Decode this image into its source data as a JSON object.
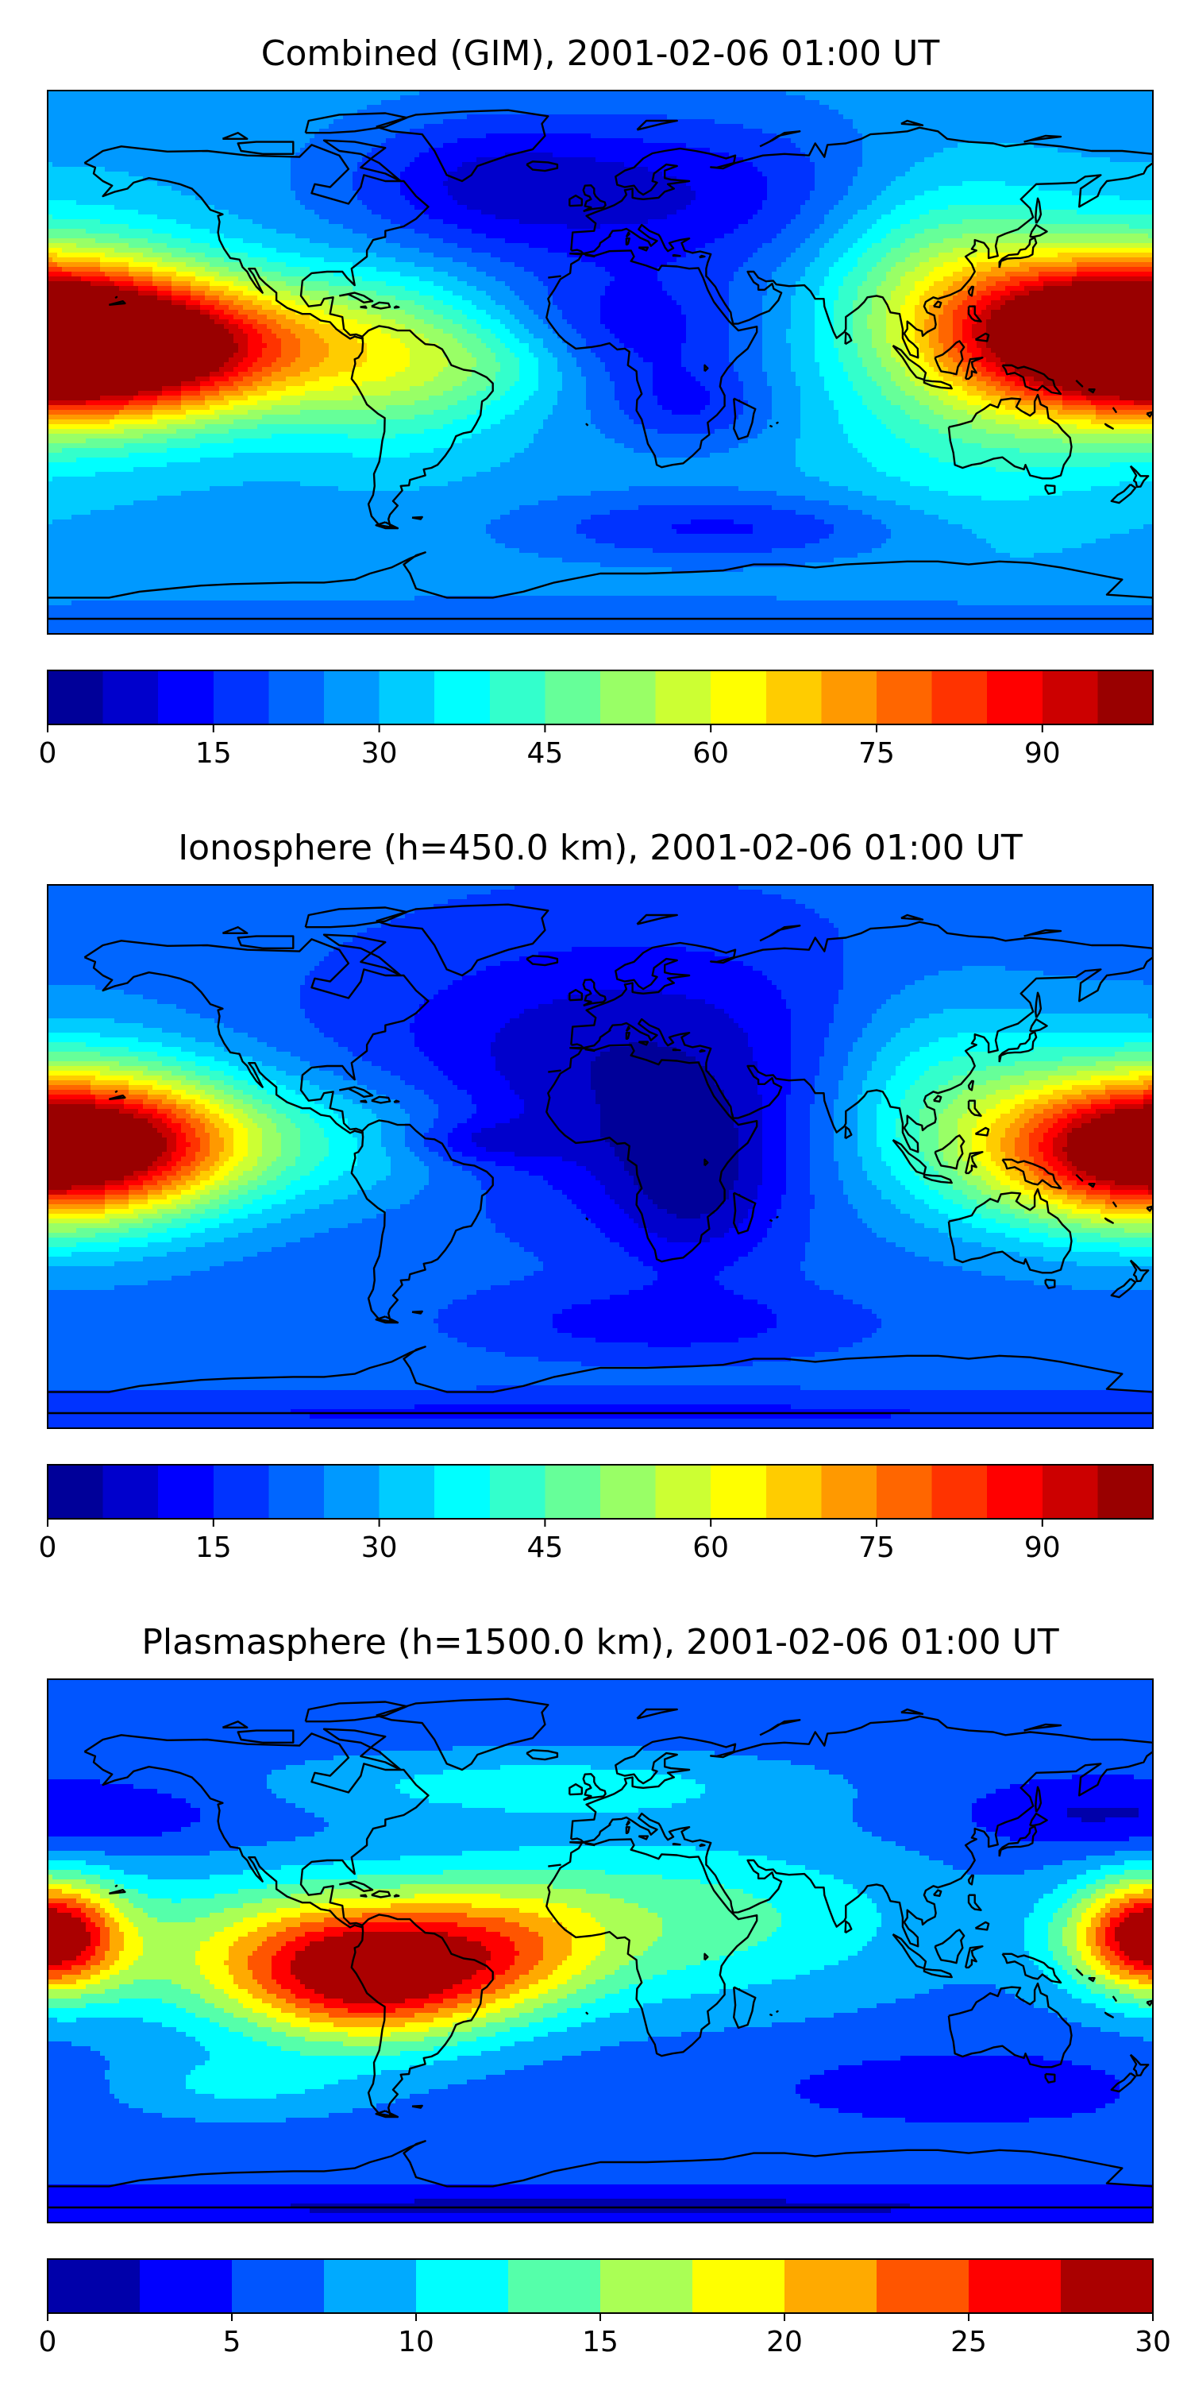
{
  "panels": [
    {
      "title": "Combined (GIM), 2001-02-06 01:00 UT",
      "colorbar": {
        "min": 0,
        "max": 100,
        "levels": 20,
        "ticks": [
          0,
          15,
          30,
          45,
          60,
          75,
          90
        ],
        "tick_labels": [
          "0",
          "15",
          "30",
          "45",
          "60",
          "75",
          "90"
        ]
      },
      "field": {
        "base": 28,
        "blobs": [
          {
            "lon": -150,
            "lat": 5,
            "amp": 72,
            "rlon": 45,
            "rlat": 16
          },
          {
            "lon": -175,
            "lat": 10,
            "amp": 20,
            "rlon": 35,
            "rlat": 25
          },
          {
            "lon": 160,
            "lat": 10,
            "amp": 55,
            "rlon": 35,
            "rlat": 17
          },
          {
            "lon": 110,
            "lat": 30,
            "amp": 22,
            "rlon": 30,
            "rlat": 25
          },
          {
            "lon": 120,
            "lat": -25,
            "amp": 10,
            "rlon": 35,
            "rlat": 25
          },
          {
            "lon": -65,
            "lat": 0,
            "amp": 20,
            "rlon": 25,
            "rlat": 20
          },
          {
            "lon": -30,
            "lat": 0,
            "amp": 10,
            "rlon": 20,
            "rlat": 10
          },
          {
            "lon": 20,
            "lat": 55,
            "amp": -18,
            "rlon": 60,
            "rlat": 20
          },
          {
            "lon": 10,
            "lat": 10,
            "amp": -14,
            "rlon": 30,
            "rlat": 14
          },
          {
            "lon": 30,
            "lat": -15,
            "amp": -12,
            "rlon": 20,
            "rlat": 10
          },
          {
            "lon": 40,
            "lat": -55,
            "amp": -14,
            "rlon": 45,
            "rlat": 8
          },
          {
            "lon": -40,
            "lat": 60,
            "amp": -10,
            "rlon": 30,
            "rlat": 15
          },
          {
            "lon": 0,
            "lat": -85,
            "amp": -8,
            "rlon": 200,
            "rlat": 5
          }
        ]
      }
    },
    {
      "title": "Ionosphere  (h=450.0 km), 2001-02-06 01:00 UT",
      "colorbar": {
        "min": 0,
        "max": 100,
        "levels": 20,
        "ticks": [
          0,
          15,
          30,
          45,
          60,
          75,
          90
        ],
        "tick_labels": [
          "0",
          "15",
          "30",
          "45",
          "60",
          "75",
          "90"
        ]
      },
      "field": {
        "base": 22,
        "blobs": [
          {
            "lon": -155,
            "lat": 5,
            "amp": 50,
            "rlon": 40,
            "rlat": 16
          },
          {
            "lon": -175,
            "lat": 10,
            "amp": 15,
            "rlon": 35,
            "rlat": 25
          },
          {
            "lon": 170,
            "lat": 0,
            "amp": 45,
            "rlon": 35,
            "rlat": 17
          },
          {
            "lon": 110,
            "lat": 20,
            "amp": 20,
            "rlon": 30,
            "rlat": 25
          },
          {
            "lon": -70,
            "lat": 5,
            "amp": 10,
            "rlon": 25,
            "rlat": 15
          },
          {
            "lon": 10,
            "lat": 30,
            "amp": -17,
            "rlon": 60,
            "rlat": 30
          },
          {
            "lon": 30,
            "lat": -10,
            "amp": -15,
            "rlon": 20,
            "rlat": 20
          },
          {
            "lon": -40,
            "lat": 5,
            "amp": -10,
            "rlon": 20,
            "rlat": 5
          },
          {
            "lon": 20,
            "lat": -55,
            "amp": -10,
            "rlon": 40,
            "rlat": 8
          },
          {
            "lon": 0,
            "lat": -85,
            "amp": -8,
            "rlon": 200,
            "rlat": 5
          }
        ]
      }
    },
    {
      "title": "Plasmasphere (h=1500.0 km), 2001-02-06 01:00 UT",
      "colorbar": {
        "min": 0,
        "max": 30,
        "levels": 12,
        "ticks": [
          0,
          5,
          10,
          15,
          20,
          25,
          30
        ],
        "tick_labels": [
          "0",
          "5",
          "10",
          "15",
          "20",
          "25",
          "30"
        ]
      },
      "field": {
        "base": 6,
        "blobs": [
          {
            "lon": -75,
            "lat": -8,
            "amp": 20,
            "rlon": 30,
            "rlat": 16
          },
          {
            "lon": -120,
            "lat": 0,
            "amp": 8,
            "rlon": 45,
            "rlat": 18
          },
          {
            "lon": 175,
            "lat": 5,
            "amp": 12,
            "rlon": 20,
            "rlat": 13
          },
          {
            "lon": -178,
            "lat": 5,
            "amp": 12,
            "rlon": 15,
            "rlat": 13
          },
          {
            "lon": 20,
            "lat": 10,
            "amp": 8,
            "rlon": 60,
            "rlat": 20
          },
          {
            "lon": -30,
            "lat": 0,
            "amp": 8,
            "rlon": 25,
            "rlat": 15
          },
          {
            "lon": -20,
            "lat": 55,
            "amp": 5,
            "rlon": 60,
            "rlat": 8
          },
          {
            "lon": -120,
            "lat": -45,
            "amp": 4,
            "rlon": 30,
            "rlat": 8
          },
          {
            "lon": 120,
            "lat": -45,
            "amp": -3,
            "rlon": 40,
            "rlat": 8
          },
          {
            "lon": -160,
            "lat": 45,
            "amp": -3,
            "rlon": 30,
            "rlat": 8
          },
          {
            "lon": 150,
            "lat": 45,
            "amp": -3,
            "rlon": 25,
            "rlat": 8
          },
          {
            "lon": 0,
            "lat": -85,
            "amp": -4,
            "rlon": 200,
            "rlat": 5
          }
        ]
      }
    }
  ],
  "coastline_color": "#000000"
}
